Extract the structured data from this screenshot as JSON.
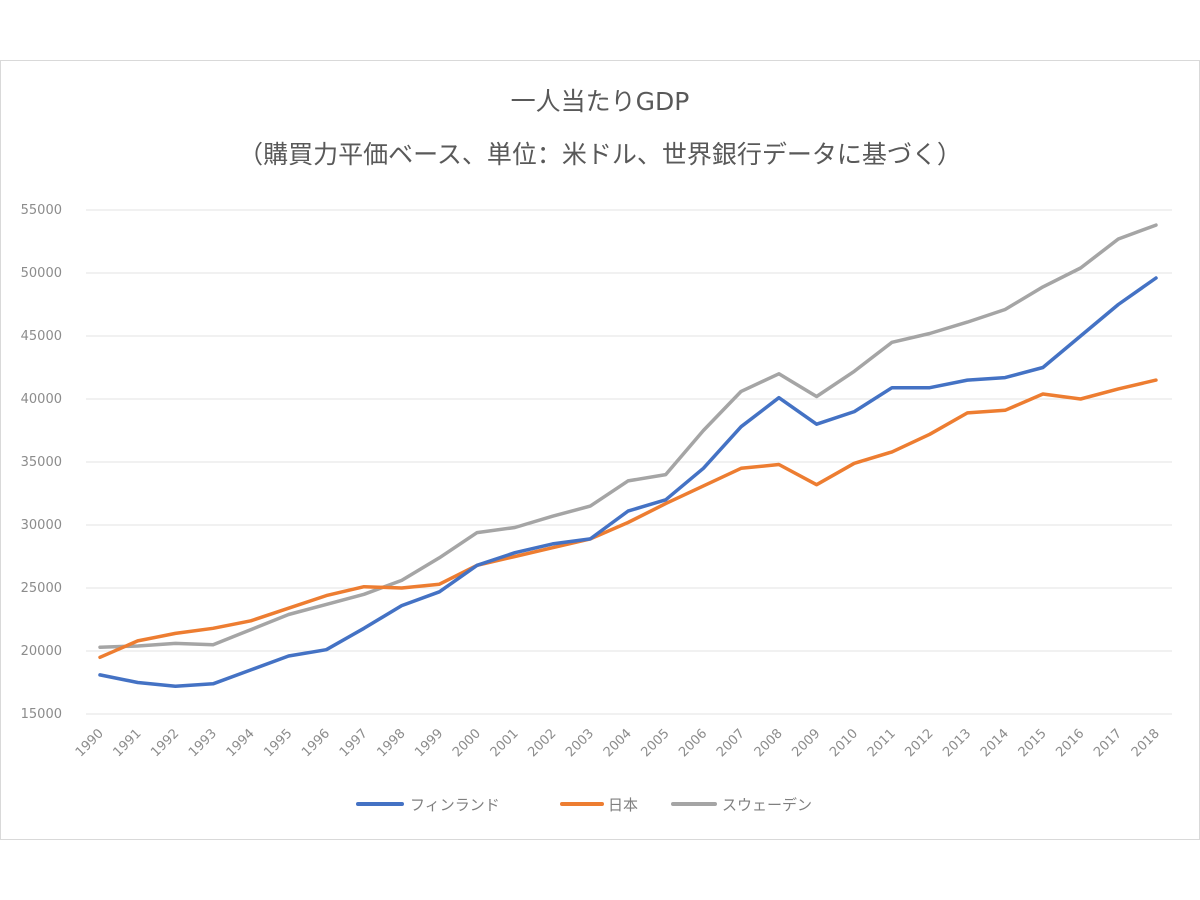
{
  "chart_data": {
    "type": "line",
    "title": "一人当たりGDP",
    "subtitle": "（購買力平価ベース、単位：米ドル、世界銀行データに基づく）",
    "xlabel": "",
    "ylabel": "",
    "ylim": [
      15000,
      55000
    ],
    "yticks": [
      "15000",
      "20000",
      "25000",
      "30000",
      "35000",
      "40000",
      "45000",
      "50000",
      "55000"
    ],
    "grid": true,
    "legend_position": "bottom",
    "categories": [
      "1990",
      "1991",
      "1992",
      "1993",
      "1994",
      "1995",
      "1996",
      "1997",
      "1998",
      "1999",
      "2000",
      "2001",
      "2002",
      "2003",
      "2004",
      "2005",
      "2006",
      "2007",
      "2008",
      "2009",
      "2010",
      "2011",
      "2012",
      "2013",
      "2014",
      "2015",
      "2016",
      "2017",
      "2018"
    ],
    "series": [
      {
        "name": "フィンランド",
        "color": "#4472c4",
        "values": [
          18100,
          17500,
          17200,
          17400,
          18500,
          19600,
          20100,
          21800,
          23600,
          24700,
          26800,
          27800,
          28500,
          28900,
          31100,
          32000,
          34500,
          37800,
          40100,
          38000,
          39000,
          40900,
          40900,
          41500,
          41700,
          42500,
          45000,
          47500,
          49600
        ]
      },
      {
        "name": "日本",
        "color": "#ed7d31",
        "values": [
          19500,
          20800,
          21400,
          21800,
          22400,
          23400,
          24400,
          25100,
          25000,
          25300,
          26800,
          27500,
          28200,
          28900,
          30200,
          31700,
          33100,
          34500,
          34800,
          33200,
          34900,
          35800,
          37200,
          38900,
          39100,
          40400,
          40000,
          40800,
          41500
        ]
      },
      {
        "name": "スウェーデン",
        "color": "#a5a5a5",
        "values": [
          20300,
          20400,
          20600,
          20500,
          21700,
          22900,
          23700,
          24500,
          25600,
          27400,
          29400,
          29800,
          30700,
          31500,
          33500,
          34000,
          37500,
          40600,
          42000,
          40200,
          42200,
          44500,
          45200,
          46100,
          47100,
          48900,
          50400,
          52700,
          53800
        ]
      }
    ]
  }
}
